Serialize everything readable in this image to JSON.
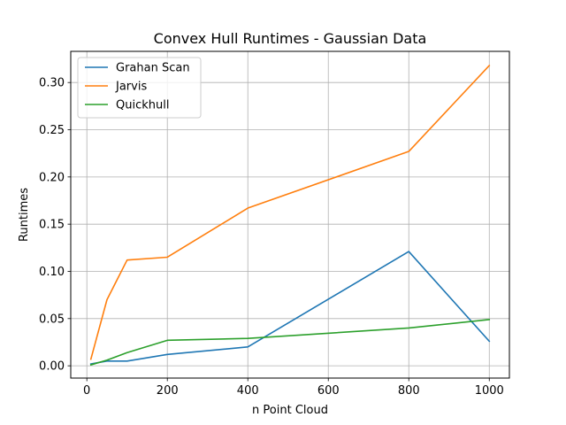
{
  "chart_data": {
    "type": "line",
    "title": "Convex Hull Runtimes - Gaussian Data",
    "xlabel": "n Point Cloud",
    "ylabel": "Runtimes",
    "xlim": [
      -40,
      1050
    ],
    "ylim": [
      -0.013,
      0.333
    ],
    "xticks": [
      0,
      200,
      400,
      600,
      800,
      1000
    ],
    "yticks": [
      0.0,
      0.05,
      0.1,
      0.15,
      0.2,
      0.25,
      0.3
    ],
    "ytick_labels": [
      "0.00",
      "0.05",
      "0.10",
      "0.15",
      "0.20",
      "0.25",
      "0.30"
    ],
    "grid": true,
    "legend_position": "upper-left",
    "x": [
      10,
      50,
      100,
      200,
      400,
      800,
      1000
    ],
    "series": [
      {
        "name": "Grahan Scan",
        "color": "#1f77b4",
        "values": [
          0.002,
          0.005,
          0.005,
          0.012,
          0.02,
          0.121,
          0.026
        ]
      },
      {
        "name": "Jarvis",
        "color": "#ff7f0e",
        "values": [
          0.007,
          0.07,
          0.112,
          0.115,
          0.167,
          0.227,
          0.318
        ]
      },
      {
        "name": "Quickhull",
        "color": "#2ca02c",
        "values": [
          0.001,
          0.006,
          0.014,
          0.027,
          0.029,
          0.04,
          0.049
        ]
      }
    ]
  }
}
